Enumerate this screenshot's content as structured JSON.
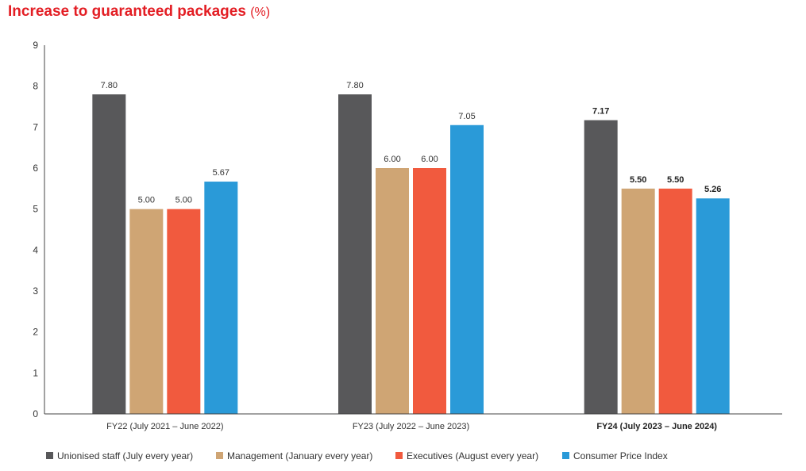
{
  "title": {
    "text": "Increase to guaranteed packages",
    "unit": "(%)"
  },
  "chart_data": {
    "type": "bar",
    "title": "Increase to guaranteed packages (%)",
    "xlabel": "",
    "ylabel": "",
    "ylim": [
      0,
      9
    ],
    "yticks": [
      0,
      1,
      2,
      3,
      4,
      5,
      6,
      7,
      8,
      9
    ],
    "grid": false,
    "legend_position": "bottom",
    "categories": [
      "FY22 (July 2021 – June 2022)",
      "FY23 (July 2022 – June 2023)",
      "FY24 (July 2023 – June 2024)"
    ],
    "emphasized_category": "FY24 (July 2023 – June 2024)",
    "series": [
      {
        "name": "Unionised staff (July every year)",
        "color": "#58585a",
        "values": [
          7.8,
          7.8,
          7.17
        ]
      },
      {
        "name": "Management (January every year)",
        "color": "#cfa574",
        "values": [
          5.0,
          6.0,
          5.5
        ]
      },
      {
        "name": "Executives (August every year)",
        "color": "#f15a3e",
        "values": [
          5.0,
          6.0,
          5.5
        ]
      },
      {
        "name": "Consumer Price Index",
        "color": "#2a9ad8",
        "values": [
          5.67,
          7.05,
          5.26
        ]
      }
    ]
  }
}
